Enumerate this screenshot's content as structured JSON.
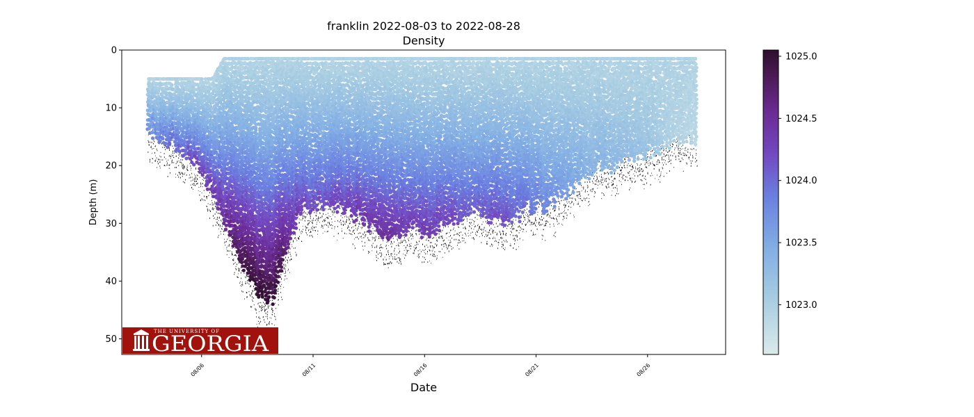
{
  "chart_data": {
    "type": "scatter",
    "title": "franklin 2022-08-03 to 2022-08-28",
    "subtitle": "Density",
    "xlabel": "Date",
    "ylabel": "Depth (m)",
    "x_tick_labels": [
      "08/06",
      "08/11",
      "08/16",
      "08/21",
      "08/26"
    ],
    "x_tick_days": [
      6,
      11,
      16,
      21,
      26
    ],
    "xlim_days": [
      2.42,
      29.5
    ],
    "y_ticks": [
      0,
      10,
      20,
      30,
      40,
      50
    ],
    "ylim": [
      52.7,
      0
    ],
    "y_inverted": true,
    "colorbar": {
      "colormap": "dense-like (light cyan to dark purple)",
      "ticks": [
        1023.0,
        1023.5,
        1024.0,
        1024.5,
        1025.0
      ],
      "range": [
        1022.6,
        1025.05
      ]
    },
    "colors": {
      "low": "#dbeaea",
      "mid_low": "#8ab8e2",
      "mid": "#6f86e2",
      "mid_high": "#7b42b6",
      "high": "#2d0f2e",
      "bottom_marks": "#000000"
    },
    "profile_envelope": {
      "description": "glider profile envelope: day of month, top depth (m), max depth (m), bottom density",
      "day": [
        3.6,
        4.0,
        4.5,
        5.0,
        5.5,
        6.0,
        6.5,
        7.0,
        7.5,
        8.0,
        8.5,
        9.0,
        9.3,
        9.6,
        10.0,
        10.5,
        11.0,
        11.5,
        12.0,
        12.5,
        13.0,
        13.5,
        14.0,
        14.5,
        15.0,
        15.5,
        16.0,
        16.5,
        17.0,
        17.5,
        18.0,
        18.5,
        19.0,
        19.5,
        20.0,
        20.5,
        21.0,
        21.5,
        22.0,
        22.5,
        23.0,
        23.5,
        24.0,
        24.5,
        25.0,
        25.5,
        26.0,
        26.5,
        27.0,
        27.5,
        28.0,
        28.2
      ],
      "top": [
        5,
        5,
        5,
        5,
        5,
        5,
        5,
        1.5,
        1.5,
        1.5,
        1.5,
        1.5,
        1.5,
        1.5,
        1.5,
        1.5,
        1.5,
        1.5,
        1.5,
        1.5,
        1.5,
        1.5,
        1.5,
        1.5,
        1.5,
        1.5,
        1.5,
        1.5,
        1.5,
        1.5,
        1.5,
        1.5,
        1.5,
        1.5,
        1.5,
        1.5,
        1.5,
        1.5,
        1.5,
        1.5,
        1.5,
        1.5,
        1.5,
        1.5,
        1.5,
        1.5,
        1.5,
        1.5,
        1.5,
        1.5,
        1.5,
        1.5
      ],
      "bottom": [
        14,
        15,
        16,
        17,
        19,
        21,
        25,
        29,
        34,
        38,
        42,
        44,
        42,
        37,
        32,
        28,
        27,
        27,
        27,
        28,
        29,
        30,
        32,
        33,
        31,
        30,
        32,
        31,
        30,
        29,
        28,
        28,
        29,
        29,
        29,
        28,
        27,
        27,
        26,
        24,
        22,
        21,
        20,
        20,
        19,
        19,
        18,
        17,
        16,
        16,
        15,
        15
      ],
      "bottom_density": [
        1023.8,
        1023.9,
        1024.0,
        1024.1,
        1024.2,
        1024.3,
        1024.4,
        1024.5,
        1024.8,
        1025.0,
        1025.05,
        1025.05,
        1025.0,
        1024.9,
        1024.5,
        1024.3,
        1024.2,
        1024.2,
        1024.3,
        1024.3,
        1024.4,
        1024.4,
        1024.5,
        1024.5,
        1024.4,
        1024.3,
        1024.4,
        1024.3,
        1024.3,
        1024.2,
        1024.1,
        1024.1,
        1024.2,
        1024.2,
        1024.1,
        1024.0,
        1023.9,
        1023.8,
        1023.7,
        1023.6,
        1023.5,
        1023.4,
        1023.4,
        1023.35,
        1023.3,
        1023.25,
        1023.2,
        1023.1,
        1023.0,
        1022.95,
        1022.9,
        1022.9
      ]
    }
  },
  "logo": {
    "small_text": "THE UNIVERSITY OF",
    "big_text": "GEORGIA",
    "background": "#a0120b"
  }
}
